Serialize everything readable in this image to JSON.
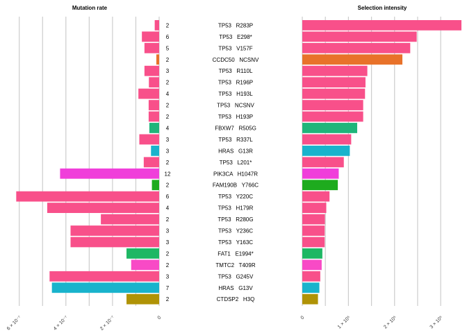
{
  "chart_data": {
    "type": "bar",
    "panels": [
      {
        "title": "Mutation rate",
        "orientation": "horizontal-reversed",
        "xlim": [
          0,
          6.2e-07
        ],
        "grid_values": [
          0,
          1e-07,
          2e-07,
          3e-07,
          4e-07,
          5e-07,
          6e-07
        ],
        "ticks": [
          {
            "value": 6e-07,
            "label": "6 × 10⁻⁷"
          },
          {
            "value": 4e-07,
            "label": "4 × 10⁻⁷"
          },
          {
            "value": 2e-07,
            "label": "2 × 10⁻⁷"
          },
          {
            "value": 0,
            "label": "0"
          }
        ]
      },
      {
        "title": "Selection intensity",
        "orientation": "horizontal",
        "xlim": [
          0,
          345000
        ],
        "grid_values": [
          0,
          50000,
          100000,
          150000,
          200000,
          250000,
          300000
        ],
        "ticks": [
          {
            "value": 0,
            "label": "0"
          },
          {
            "value": 100000,
            "label": "1 × 10⁵"
          },
          {
            "value": 200000,
            "label": "2 × 10⁵"
          },
          {
            "value": 300000,
            "label": "3 × 10⁵"
          }
        ]
      }
    ],
    "rows": [
      {
        "gene": "TP53",
        "variant": "R283P",
        "count": "2",
        "mutation_rate": 1.9e-08,
        "selection": 345000,
        "color": "#F8508A"
      },
      {
        "gene": "TP53",
        "variant": "E298*",
        "count": "6",
        "mutation_rate": 7.4e-08,
        "selection": 248000,
        "color": "#F8508A"
      },
      {
        "gene": "TP53",
        "variant": "V157F",
        "count": "5",
        "mutation_rate": 6.3e-08,
        "selection": 234000,
        "color": "#F8508A"
      },
      {
        "gene": "CCDC50",
        "variant": "NCSNV",
        "count": "2",
        "mutation_rate": 1.2e-08,
        "selection": 217000,
        "color": "#E8722A"
      },
      {
        "gene": "TP53",
        "variant": "R110L",
        "count": "3",
        "mutation_rate": 6.3e-08,
        "selection": 141000,
        "color": "#F8508A"
      },
      {
        "gene": "TP53",
        "variant": "R196P",
        "count": "2",
        "mutation_rate": 4.4e-08,
        "selection": 137000,
        "color": "#F8508A"
      },
      {
        "gene": "TP53",
        "variant": "H193L",
        "count": "4",
        "mutation_rate": 8.9e-08,
        "selection": 136000,
        "color": "#F8508A"
      },
      {
        "gene": "TP53",
        "variant": "NCSNV",
        "count": "2",
        "mutation_rate": 4.5e-08,
        "selection": 132000,
        "color": "#F8508A"
      },
      {
        "gene": "TP53",
        "variant": "H193P",
        "count": "2",
        "mutation_rate": 4.5e-08,
        "selection": 132000,
        "color": "#F8508A"
      },
      {
        "gene": "FBXW7",
        "variant": "R505G",
        "count": "4",
        "mutation_rate": 4.2e-08,
        "selection": 119000,
        "color": "#1FB57A"
      },
      {
        "gene": "TP53",
        "variant": "R337L",
        "count": "3",
        "mutation_rate": 8.5e-08,
        "selection": 106000,
        "color": "#F8508A"
      },
      {
        "gene": "HRAS",
        "variant": "G13R",
        "count": "3",
        "mutation_rate": 3.5e-08,
        "selection": 103000,
        "color": "#19B3CC"
      },
      {
        "gene": "TP53",
        "variant": "L201*",
        "count": "2",
        "mutation_rate": 6.6e-08,
        "selection": 90000,
        "color": "#F8508A"
      },
      {
        "gene": "PIK3CA",
        "variant": "H1047R",
        "count": "12",
        "mutation_rate": 4.25e-07,
        "selection": 79000,
        "color": "#F03EDA"
      },
      {
        "gene": "FAM190B",
        "variant": "Y766C",
        "count": "2",
        "mutation_rate": 3.1e-08,
        "selection": 77000,
        "color": "#1EAB1E"
      },
      {
        "gene": "TP53",
        "variant": "Y220C",
        "count": "6",
        "mutation_rate": 6.13e-07,
        "selection": 59000,
        "color": "#F8508A"
      },
      {
        "gene": "TP53",
        "variant": "H179R",
        "count": "4",
        "mutation_rate": 4.8e-07,
        "selection": 52000,
        "color": "#F8508A"
      },
      {
        "gene": "TP53",
        "variant": "R280G",
        "count": "2",
        "mutation_rate": 2.5e-07,
        "selection": 49000,
        "color": "#F8508A"
      },
      {
        "gene": "TP53",
        "variant": "Y236C",
        "count": "3",
        "mutation_rate": 3.8e-07,
        "selection": 48500,
        "color": "#F8508A"
      },
      {
        "gene": "TP53",
        "variant": "Y163C",
        "count": "3",
        "mutation_rate": 3.8e-07,
        "selection": 48500,
        "color": "#F8508A"
      },
      {
        "gene": "FAT1",
        "variant": "E1994*",
        "count": "2",
        "mutation_rate": 1.4e-07,
        "selection": 43500,
        "color": "#1EB764"
      },
      {
        "gene": "TMTC2",
        "variant": "T409R",
        "count": "2",
        "mutation_rate": 1.2e-07,
        "selection": 42000,
        "color": "#F84AC6"
      },
      {
        "gene": "TP53",
        "variant": "G245V",
        "count": "3",
        "mutation_rate": 4.7e-07,
        "selection": 39000,
        "color": "#F8508A"
      },
      {
        "gene": "HRAS",
        "variant": "G13V",
        "count": "7",
        "mutation_rate": 4.6e-07,
        "selection": 37000,
        "color": "#19B3CC"
      },
      {
        "gene": "CTDSP2",
        "variant": "H3Q",
        "count": "2",
        "mutation_rate": 1.4e-07,
        "selection": 34000,
        "color": "#B09306"
      }
    ]
  }
}
